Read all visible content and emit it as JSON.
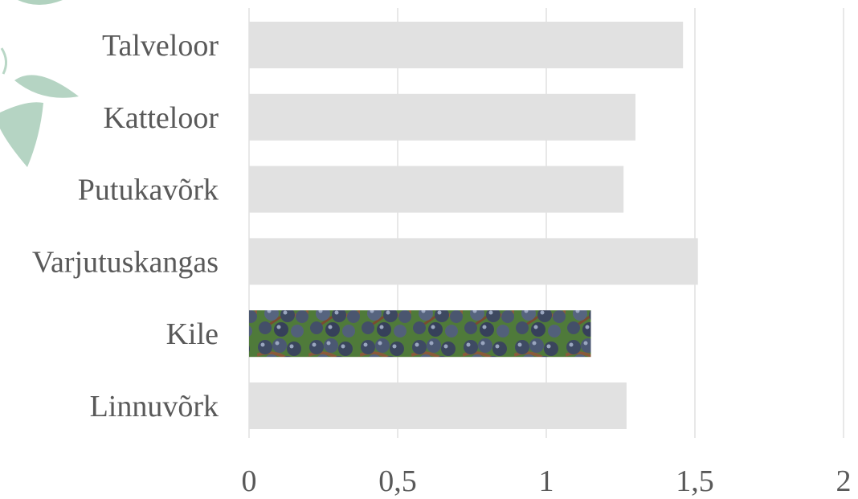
{
  "chart_data": {
    "type": "bar",
    "orientation": "horizontal",
    "categories": [
      "Talveloor",
      "Katteloor",
      "Putukavõrk",
      "Varjutuskangas",
      "Kile",
      "Linnuvõrk"
    ],
    "values": [
      1.46,
      1.3,
      1.26,
      1.51,
      1.15,
      1.27
    ],
    "xlim": [
      0,
      2
    ],
    "x_ticks": [
      0,
      0.5,
      1,
      1.5,
      2
    ],
    "x_tick_labels": [
      "0",
      "0,5",
      "1",
      "1,5",
      "2"
    ],
    "grid": "vertical",
    "legend": "none",
    "highlight_category": "Kile",
    "highlight_fill": "grape-photo",
    "colors": {
      "bar": "#e1e1e1",
      "grid": "#d9d9d9",
      "text": "#595959",
      "leaf": "#a8cdb8"
    }
  },
  "decoration": {
    "icon": "leaf-decoration-icon"
  }
}
